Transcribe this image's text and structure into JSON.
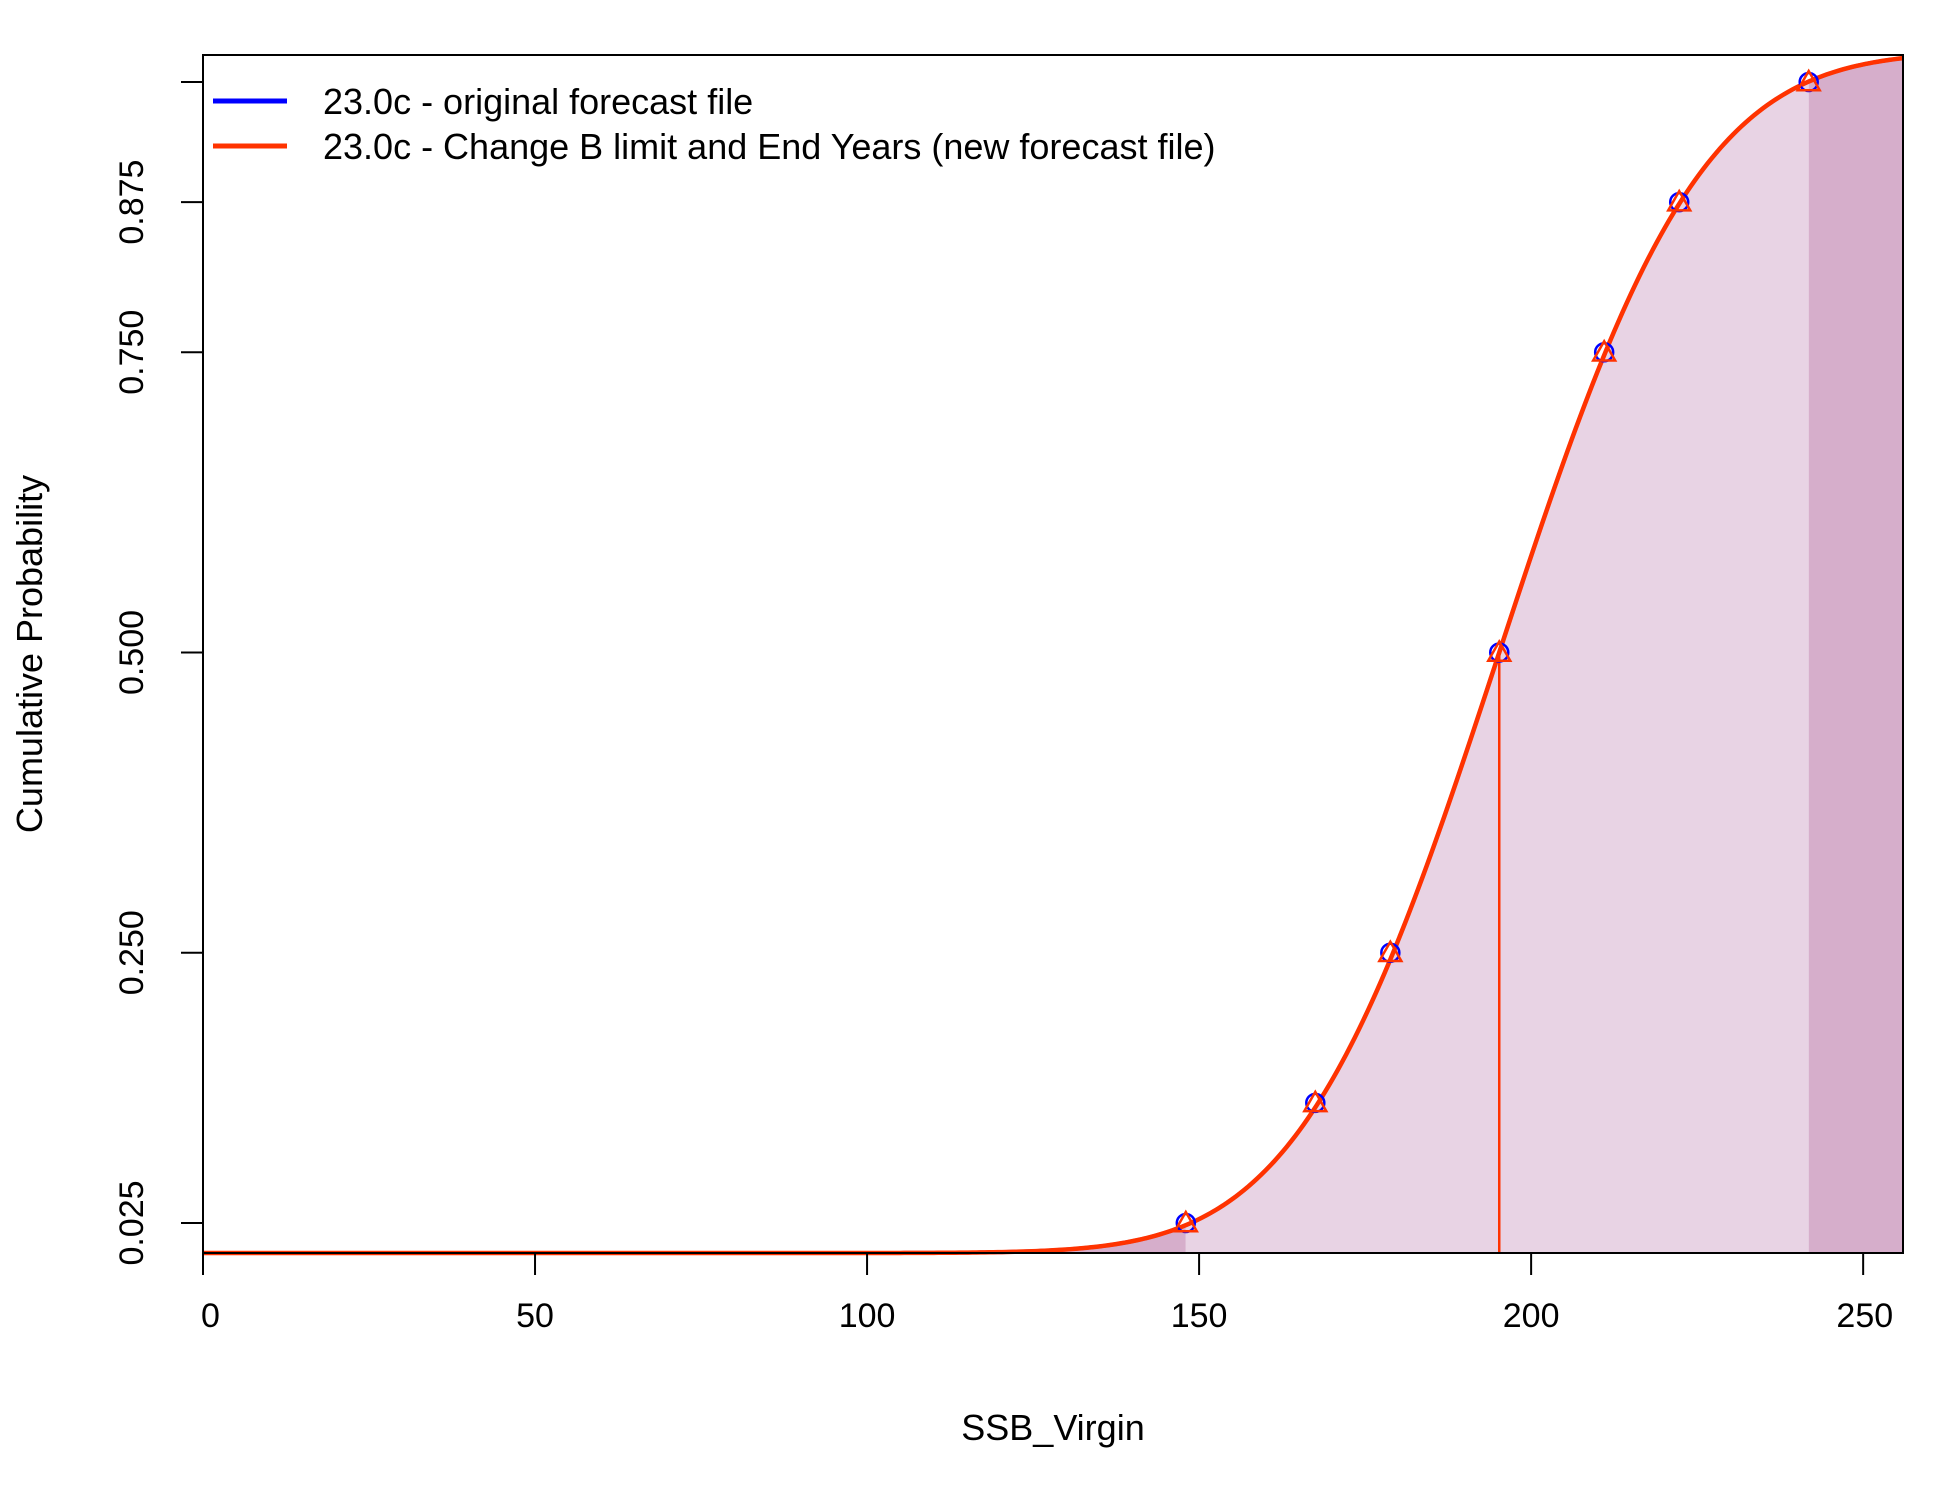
{
  "chart_data": {
    "type": "line",
    "xlabel": "SSB_Virgin",
    "ylabel": "Cumulative Probability",
    "xlim": [
      0,
      256
    ],
    "ylim": [
      0,
      1.0
    ],
    "x_ticks": [
      0,
      50,
      100,
      150,
      200,
      250
    ],
    "x_tick_labels": [
      "0",
      "50",
      "100",
      "150",
      "200",
      "250"
    ],
    "y_ticks": [
      0.025,
      0.25,
      0.5,
      0.75,
      0.875
    ],
    "y_tick_labels": [
      "0.025",
      "0.250",
      "0.500",
      "0.750",
      "0.875"
    ],
    "y_extra_tick": 0.975,
    "grid": false,
    "legend_position": "top-left",
    "series": [
      {
        "name": "23.0c - original forecast file",
        "color": "#0000ff",
        "marker": "circle",
        "quantiles": [
          {
            "p": 0.025,
            "x": 148.0
          },
          {
            "p": 0.125,
            "x": 167.5
          },
          {
            "p": 0.25,
            "x": 178.8
          },
          {
            "p": 0.5,
            "x": 195.2
          },
          {
            "p": 0.75,
            "x": 211.0
          },
          {
            "p": 0.875,
            "x": 222.3
          },
          {
            "p": 0.975,
            "x": 241.8
          }
        ]
      },
      {
        "name": "23.0c - Change B limit and End Years (new forecast file)",
        "color": "#ff3300",
        "marker": "triangle",
        "quantiles": [
          {
            "p": 0.025,
            "x": 148.0
          },
          {
            "p": 0.125,
            "x": 167.5
          },
          {
            "p": 0.25,
            "x": 178.8
          },
          {
            "p": 0.5,
            "x": 195.2
          },
          {
            "p": 0.75,
            "x": 211.0
          },
          {
            "p": 0.875,
            "x": 222.3
          },
          {
            "p": 0.975,
            "x": 241.8
          }
        ]
      }
    ],
    "median": 195.2,
    "shaded_regions": [
      {
        "from": 0,
        "to": 148.0,
        "color": "#d6aecb"
      },
      {
        "from": 148.0,
        "to": 241.8,
        "color": "#e8d3e4"
      },
      {
        "from": 241.8,
        "to": 256,
        "color": "#d6aecb"
      }
    ]
  }
}
